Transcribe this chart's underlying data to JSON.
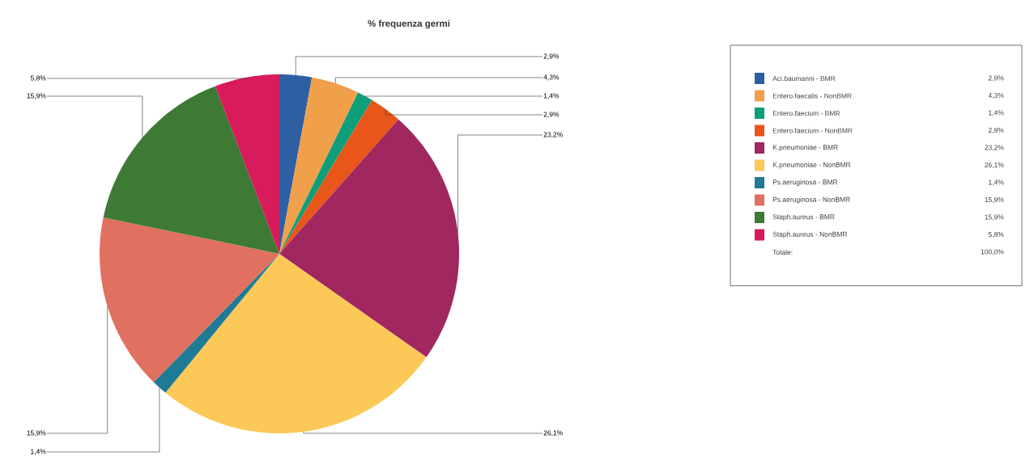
{
  "chart_data": {
    "type": "pie",
    "title": "% frequenza germi",
    "categories": [
      "Aci.baumanni - BMR",
      "Entero.faecalis - NonBMR",
      "Entero.faecium - BMR",
      "Entero.faecium - NonBMR",
      "K.pneumoniae - BMR",
      "K.pneumoniae - NonBMR",
      "Ps.aeruginosa - BMR",
      "Ps.aeruginosa - NonBMR",
      "Staph.aureus - BMR",
      "Staph.aureus - NonBMR"
    ],
    "values": [
      2.9,
      4.3,
      1.4,
      2.9,
      23.2,
      26.1,
      1.4,
      15.9,
      15.9,
      5.8
    ],
    "colors": [
      "#2e5fa3",
      "#f0a04b",
      "#0e9e7a",
      "#e8561a",
      "#a0275f",
      "#fcc858",
      "#1f7a96",
      "#e0705f",
      "#3e7a35",
      "#d81b5a"
    ],
    "value_labels": [
      "2,9%",
      "4,3%",
      "1,4%",
      "2,9%",
      "23,2%",
      "26,1%",
      "1,4%",
      "15,9%",
      "15,9%",
      "5,8%"
    ],
    "legend": "right",
    "annotations": [
      "Totale:",
      "100,0%"
    ]
  }
}
